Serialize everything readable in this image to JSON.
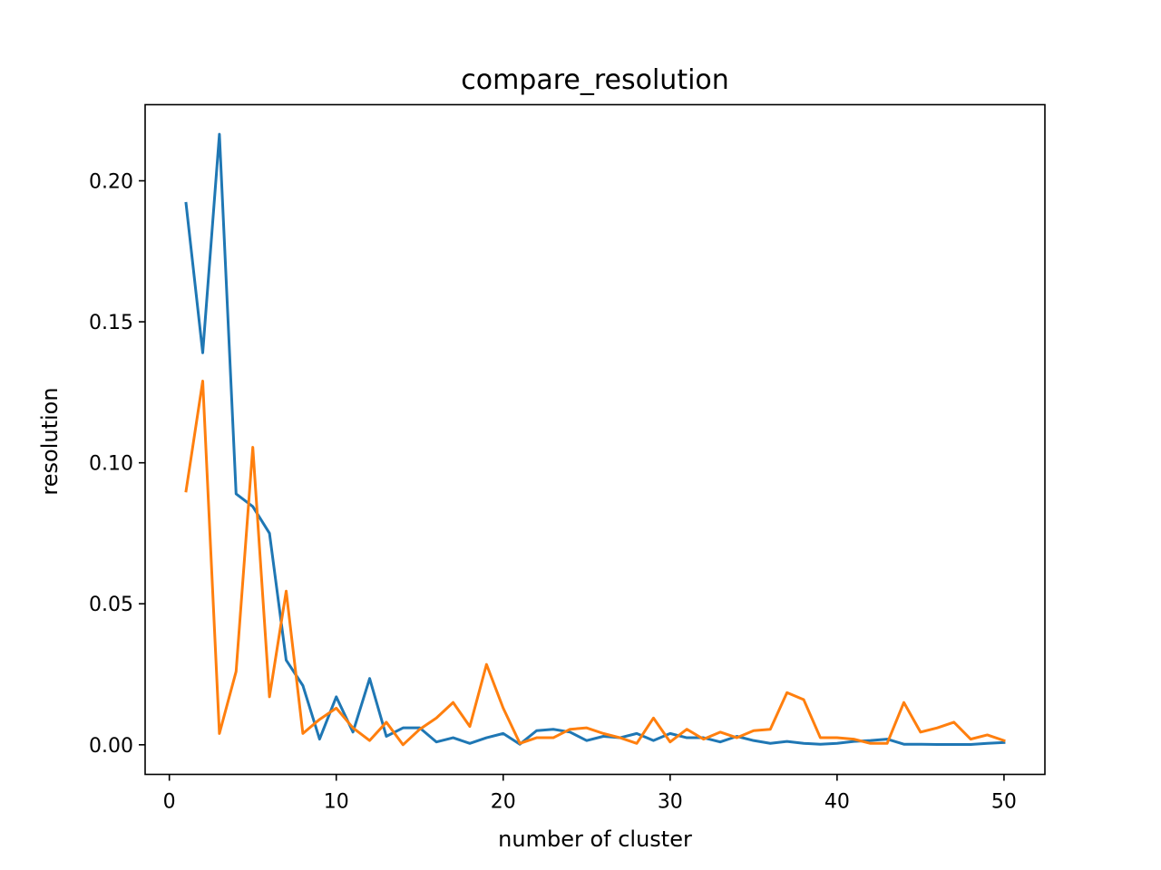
{
  "chart_data": {
    "type": "line",
    "title": "compare_resolution",
    "xlabel": "number of cluster",
    "ylabel": "resolution",
    "xlim": [
      -1.45,
      52.45
    ],
    "ylim": [
      -0.0105,
      0.227
    ],
    "xticks": [
      0,
      10,
      20,
      30,
      40,
      50
    ],
    "yticks": [
      0.0,
      0.05,
      0.1,
      0.15,
      0.2
    ],
    "xtick_labels": [
      "0",
      "10",
      "20",
      "30",
      "40",
      "50"
    ],
    "ytick_labels": [
      "0.00",
      "0.05",
      "0.10",
      "0.15",
      "0.20"
    ],
    "grid": false,
    "legend": "none",
    "x": [
      1,
      2,
      3,
      4,
      5,
      6,
      7,
      8,
      9,
      10,
      11,
      12,
      13,
      14,
      15,
      16,
      17,
      18,
      19,
      20,
      21,
      22,
      23,
      24,
      25,
      26,
      27,
      28,
      29,
      30,
      31,
      32,
      33,
      34,
      35,
      36,
      37,
      38,
      39,
      40,
      41,
      42,
      43,
      44,
      45,
      46,
      47,
      48,
      49,
      50
    ],
    "series": [
      {
        "color": "#1f77b4",
        "values": [
          0.192,
          0.139,
          0.2165,
          0.089,
          0.0845,
          0.075,
          0.03,
          0.021,
          0.002,
          0.017,
          0.0045,
          0.0235,
          0.003,
          0.006,
          0.006,
          0.001,
          0.0025,
          0.0005,
          0.0025,
          0.004,
          0.0002,
          0.005,
          0.0055,
          0.0045,
          0.0015,
          0.003,
          0.0025,
          0.004,
          0.0015,
          0.004,
          0.0025,
          0.0025,
          0.001,
          0.003,
          0.0015,
          0.0005,
          0.0012,
          0.0005,
          0.0002,
          0.0005,
          0.0012,
          0.0015,
          0.002,
          0.0002,
          0.0002,
          0.0001,
          0.0001,
          0.0001,
          0.0005,
          0.0008
        ]
      },
      {
        "color": "#ff7f0e",
        "values": [
          0.09,
          0.129,
          0.004,
          0.026,
          0.1055,
          0.017,
          0.0545,
          0.004,
          0.009,
          0.013,
          0.006,
          0.0015,
          0.008,
          0.0,
          0.0055,
          0.0095,
          0.015,
          0.0065,
          0.0285,
          0.013,
          0.0005,
          0.0025,
          0.0025,
          0.0055,
          0.006,
          0.004,
          0.0025,
          0.0005,
          0.0095,
          0.001,
          0.0055,
          0.002,
          0.0045,
          0.0025,
          0.005,
          0.0055,
          0.0185,
          0.016,
          0.0025,
          0.0025,
          0.002,
          0.0005,
          0.0005,
          0.015,
          0.0045,
          0.006,
          0.008,
          0.002,
          0.0035,
          0.0015
        ]
      }
    ]
  }
}
